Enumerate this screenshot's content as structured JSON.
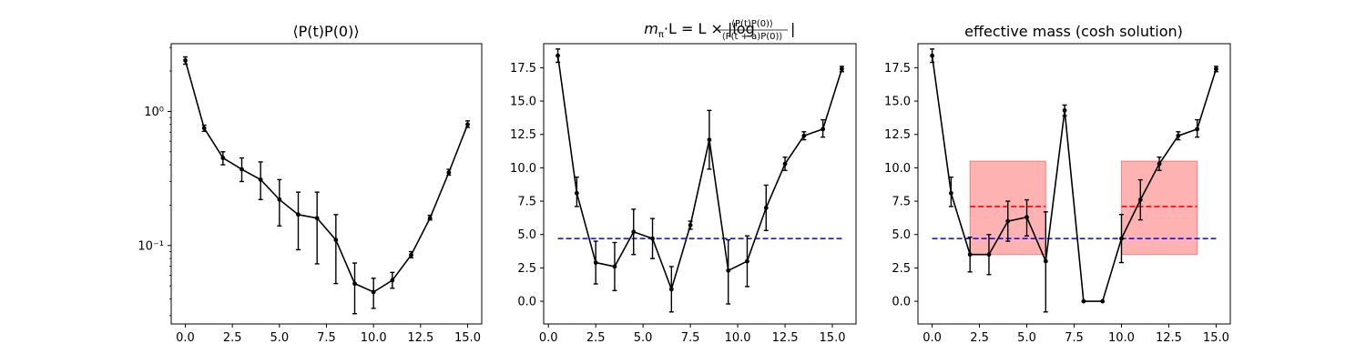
{
  "chart_data": [
    {
      "type": "line",
      "scale": "log",
      "title": "⟨P(t)P(0)⟩",
      "xlim": [
        -0.75,
        15.75
      ],
      "ylim": [
        0.026,
        3.2
      ],
      "xticks": [
        0,
        2.5,
        5,
        7.5,
        10,
        12.5,
        15
      ],
      "xtick_labels": [
        "0.0",
        "2.5",
        "5.0",
        "7.5",
        "10.0",
        "12.5",
        "15.0"
      ],
      "yticks": [
        0.1,
        1
      ],
      "ytick_labels": [
        "10⁻¹",
        "10⁰"
      ],
      "series": [
        {
          "x": [
            0,
            1,
            2,
            3,
            4,
            5,
            6,
            7,
            8,
            9,
            10,
            11,
            12,
            13,
            14,
            15
          ],
          "y": [
            2.4,
            0.75,
            0.45,
            0.37,
            0.31,
            0.22,
            0.17,
            0.16,
            0.11,
            0.052,
            0.045,
            0.055,
            0.085,
            0.16,
            0.35,
            0.8
          ],
          "err": [
            [
              2.25,
              2.55
            ],
            [
              0.71,
              0.79
            ],
            [
              0.4,
              0.5
            ],
            [
              0.3,
              0.45
            ],
            [
              0.22,
              0.42
            ],
            [
              0.14,
              0.31
            ],
            [
              0.093,
              0.25
            ],
            [
              0.073,
              0.25
            ],
            [
              0.052,
              0.17
            ],
            [
              0.031,
              0.074
            ],
            [
              0.034,
              0.057
            ],
            [
              0.048,
              0.063
            ],
            [
              0.081,
              0.09
            ],
            [
              0.155,
              0.168
            ],
            [
              0.335,
              0.37
            ],
            [
              0.76,
              0.85
            ]
          ]
        }
      ]
    },
    {
      "type": "line",
      "title_parts": {
        "prefix": "m",
        "sub": "π",
        "middle": "·L = L × |log",
        "numerator": "⟨P(t)P(0)⟩",
        "denominator": "⟨P(t + a)P(0)⟩",
        "suffix": "|"
      },
      "xlim": [
        -0.25,
        16.25
      ],
      "ylim": [
        -1.7,
        19.3
      ],
      "xticks": [
        0,
        2.5,
        5,
        7.5,
        10,
        12.5,
        15
      ],
      "xtick_labels": [
        "0.0",
        "2.5",
        "5.0",
        "7.5",
        "10.0",
        "12.5",
        "15.0"
      ],
      "yticks": [
        0,
        2.5,
        5,
        7.5,
        10,
        12.5,
        15,
        17.5
      ],
      "ytick_labels": [
        "0.0",
        "2.5",
        "5.0",
        "7.5",
        "10.0",
        "12.5",
        "15.0",
        "17.5"
      ],
      "series": [
        {
          "x": [
            0.5,
            1.5,
            2.5,
            3.5,
            4.5,
            5.5,
            6.5,
            7.5,
            8.5,
            9.5,
            10.5,
            11.5,
            12.5,
            13.5,
            14.5,
            15.5
          ],
          "y": [
            18.4,
            8.1,
            2.9,
            2.6,
            5.2,
            4.7,
            0.9,
            5.7,
            12.1,
            2.3,
            3.0,
            7.0,
            10.3,
            12.4,
            12.9,
            17.4
          ],
          "err": [
            [
              17.9,
              18.9
            ],
            [
              7.1,
              9.3
            ],
            [
              1.3,
              4.5
            ],
            [
              0.8,
              4.4
            ],
            [
              3.5,
              6.9
            ],
            [
              3.2,
              6.2
            ],
            [
              -0.8,
              2.6
            ],
            [
              5.4,
              6.0
            ],
            [
              9.9,
              14.3
            ],
            [
              -0.2,
              4.6
            ],
            [
              1.1,
              4.9
            ],
            [
              5.3,
              8.7
            ],
            [
              9.8,
              10.8
            ],
            [
              12.1,
              12.7
            ],
            [
              12.3,
              13.6
            ],
            [
              17.2,
              17.6
            ]
          ]
        }
      ],
      "reference_lines": [
        {
          "y": 4.7,
          "x": [
            0.5,
            15.5
          ],
          "color": "#0000ff",
          "style": "dashed"
        }
      ]
    },
    {
      "type": "line",
      "title": "effective mass (cosh solution)",
      "xlim": [
        -0.75,
        15.75
      ],
      "ylim": [
        -1.7,
        19.3
      ],
      "xticks": [
        0,
        2.5,
        5,
        7.5,
        10,
        12.5,
        15
      ],
      "xtick_labels": [
        "0.0",
        "2.5",
        "5.0",
        "7.5",
        "10.0",
        "12.5",
        "15.0"
      ],
      "yticks": [
        0,
        2.5,
        5,
        7.5,
        10,
        12.5,
        15,
        17.5
      ],
      "ytick_labels": [
        "0.0",
        "2.5",
        "5.0",
        "7.5",
        "10.0",
        "12.5",
        "15.0",
        "17.5"
      ],
      "series": [
        {
          "x": [
            0,
            1,
            2,
            3,
            4,
            5,
            6,
            7,
            8,
            9,
            10,
            11,
            12,
            13,
            14,
            15
          ],
          "y": [
            18.4,
            8.1,
            3.5,
            3.5,
            6.0,
            6.3,
            3.0,
            14.3,
            0.0,
            0.0,
            4.7,
            7.6,
            10.3,
            12.4,
            12.9,
            17.4
          ],
          "err": [
            [
              17.9,
              18.9
            ],
            [
              7.1,
              9.3
            ],
            [
              2.2,
              4.8
            ],
            [
              2.0,
              5.0
            ],
            [
              4.5,
              7.5
            ],
            [
              4.9,
              7.6
            ],
            [
              -0.8,
              6.7
            ],
            [
              13.9,
              14.7
            ],
            null,
            null,
            [
              2.9,
              6.5
            ],
            [
              6.1,
              9.1
            ],
            [
              9.8,
              10.8
            ],
            [
              12.1,
              12.7
            ],
            [
              12.3,
              13.6
            ],
            [
              17.2,
              17.6
            ]
          ]
        }
      ],
      "bands": [
        {
          "x": [
            2,
            6
          ],
          "y": [
            3.5,
            10.5
          ],
          "color": "#ff0000",
          "alpha": 0.3
        },
        {
          "x": [
            10,
            14
          ],
          "y": [
            3.5,
            10.5
          ],
          "color": "#ff0000",
          "alpha": 0.3
        }
      ],
      "reference_lines": [
        {
          "y": 4.7,
          "x": [
            0,
            15
          ],
          "color": "#0000ff",
          "style": "dashed"
        },
        {
          "y": 7.1,
          "x": [
            2,
            6
          ],
          "color": "#ff0000",
          "style": "dashed"
        },
        {
          "y": 7.1,
          "x": [
            10,
            14
          ],
          "color": "#ff0000",
          "style": "dashed"
        }
      ]
    }
  ]
}
